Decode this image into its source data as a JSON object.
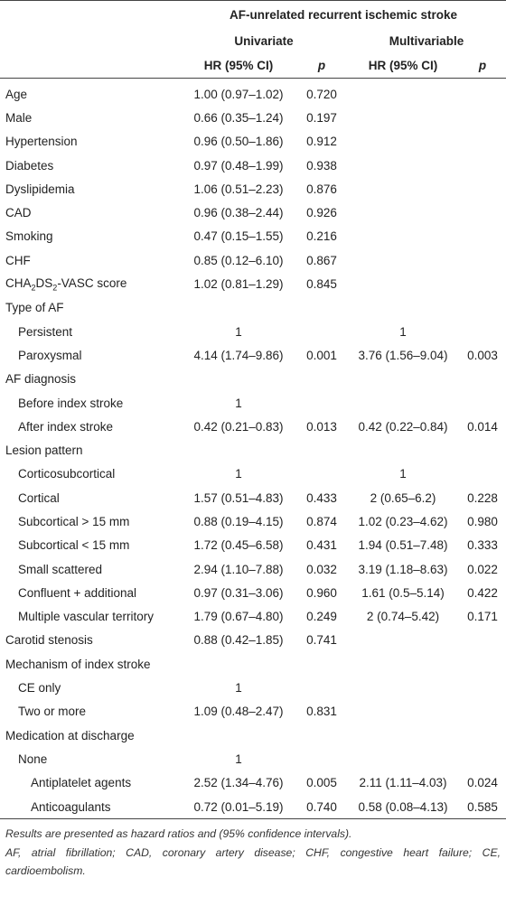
{
  "header": {
    "group_title": "AF-unrelated recurrent ischemic stroke",
    "univariate_label": "Univariate",
    "multivariable_label": "Multivariable",
    "hr_label": "HR (95% CI)",
    "p_label": "p"
  },
  "rows": [
    {
      "label": "Age",
      "indent": 0,
      "uni_hr": "1.00 (0.97–1.02)",
      "uni_p": "0.720",
      "multi_hr": "",
      "multi_p": ""
    },
    {
      "label": "Male",
      "indent": 0,
      "uni_hr": "0.66 (0.35–1.24)",
      "uni_p": "0.197",
      "multi_hr": "",
      "multi_p": ""
    },
    {
      "label": "Hypertension",
      "indent": 0,
      "uni_hr": "0.96 (0.50–1.86)",
      "uni_p": "0.912",
      "multi_hr": "",
      "multi_p": ""
    },
    {
      "label": "Diabetes",
      "indent": 0,
      "uni_hr": "0.97 (0.48–1.99)",
      "uni_p": "0.938",
      "multi_hr": "",
      "multi_p": ""
    },
    {
      "label": "Dyslipidemia",
      "indent": 0,
      "uni_hr": "1.06 (0.51–2.23)",
      "uni_p": "0.876",
      "multi_hr": "",
      "multi_p": ""
    },
    {
      "label": "CAD",
      "indent": 0,
      "uni_hr": "0.96 (0.38–2.44)",
      "uni_p": "0.926",
      "multi_hr": "",
      "multi_p": ""
    },
    {
      "label": "Smoking",
      "indent": 0,
      "uni_hr": "0.47 (0.15–1.55)",
      "uni_p": "0.216",
      "multi_hr": "",
      "multi_p": ""
    },
    {
      "label": "CHF",
      "indent": 0,
      "uni_hr": "0.85 (0.12–6.10)",
      "uni_p": "0.867",
      "multi_hr": "",
      "multi_p": ""
    },
    {
      "label": "CHA2DS2-VASC score",
      "indent": 0,
      "uni_hr": "1.02 (0.81–1.29)",
      "uni_p": "0.845",
      "multi_hr": "",
      "multi_p": ""
    },
    {
      "label": "Type of AF",
      "indent": 0,
      "uni_hr": "",
      "uni_p": "",
      "multi_hr": "",
      "multi_p": ""
    },
    {
      "label": "Persistent",
      "indent": 1,
      "uni_hr": "1",
      "uni_p": "",
      "multi_hr": "1",
      "multi_p": ""
    },
    {
      "label": "Paroxysmal",
      "indent": 1,
      "uni_hr": "4.14 (1.74–9.86)",
      "uni_p": "0.001",
      "multi_hr": "3.76 (1.56–9.04)",
      "multi_p": "0.003"
    },
    {
      "label": "AF diagnosis",
      "indent": 0,
      "uni_hr": "",
      "uni_p": "",
      "multi_hr": "",
      "multi_p": ""
    },
    {
      "label": "Before index stroke",
      "indent": 1,
      "uni_hr": "1",
      "uni_p": "",
      "multi_hr": "",
      "multi_p": ""
    },
    {
      "label": "After index stroke",
      "indent": 1,
      "uni_hr": "0.42 (0.21–0.83)",
      "uni_p": "0.013",
      "multi_hr": "0.42 (0.22–0.84)",
      "multi_p": "0.014"
    },
    {
      "label": "Lesion pattern",
      "indent": 0,
      "uni_hr": "",
      "uni_p": "",
      "multi_hr": "",
      "multi_p": ""
    },
    {
      "label": "Corticosubcortical",
      "indent": 1,
      "uni_hr": "1",
      "uni_p": "",
      "multi_hr": "1",
      "multi_p": ""
    },
    {
      "label": "Cortical",
      "indent": 1,
      "uni_hr": "1.57 (0.51–4.83)",
      "uni_p": "0.433",
      "multi_hr": "2 (0.65–6.2)",
      "multi_p": "0.228"
    },
    {
      "label": "Subcortical > 15 mm",
      "indent": 1,
      "uni_hr": "0.88 (0.19–4.15)",
      "uni_p": "0.874",
      "multi_hr": "1.02 (0.23–4.62)",
      "multi_p": "0.980"
    },
    {
      "label": "Subcortical < 15 mm",
      "indent": 1,
      "uni_hr": "1.72 (0.45–6.58)",
      "uni_p": "0.431",
      "multi_hr": "1.94 (0.51–7.48)",
      "multi_p": "0.333"
    },
    {
      "label": "Small scattered",
      "indent": 1,
      "uni_hr": "2.94 (1.10–7.88)",
      "uni_p": "0.032",
      "multi_hr": "3.19 (1.18–8.63)",
      "multi_p": "0.022"
    },
    {
      "label": "Confluent + additional",
      "indent": 1,
      "uni_hr": "0.97 (0.31–3.06)",
      "uni_p": "0.960",
      "multi_hr": "1.61 (0.5–5.14)",
      "multi_p": "0.422"
    },
    {
      "label": "Multiple vascular territory",
      "indent": 1,
      "uni_hr": "1.79 (0.67–4.80)",
      "uni_p": "0.249",
      "multi_hr": "2 (0.74–5.42)",
      "multi_p": "0.171"
    },
    {
      "label": "Carotid stenosis",
      "indent": 0,
      "uni_hr": "0.88 (0.42–1.85)",
      "uni_p": "0.741",
      "multi_hr": "",
      "multi_p": ""
    },
    {
      "label": "Mechanism of index stroke",
      "indent": 0,
      "uni_hr": "",
      "uni_p": "",
      "multi_hr": "",
      "multi_p": ""
    },
    {
      "label": "CE only",
      "indent": 1,
      "uni_hr": "1",
      "uni_p": "",
      "multi_hr": "",
      "multi_p": ""
    },
    {
      "label": "Two or more",
      "indent": 1,
      "uni_hr": "1.09 (0.48–2.47)",
      "uni_p": "0.831",
      "multi_hr": "",
      "multi_p": ""
    },
    {
      "label": "Medication at discharge",
      "indent": 0,
      "uni_hr": "",
      "uni_p": "",
      "multi_hr": "",
      "multi_p": ""
    },
    {
      "label": "None",
      "indent": 1,
      "uni_hr": "1",
      "uni_p": "",
      "multi_hr": "",
      "multi_p": ""
    },
    {
      "label": "Antiplatelet agents",
      "indent": 2,
      "uni_hr": "2.52 (1.34–4.76)",
      "uni_p": "0.005",
      "multi_hr": "2.11 (1.11–4.03)",
      "multi_p": "0.024"
    },
    {
      "label": "Anticoagulants",
      "indent": 2,
      "uni_hr": "0.72 (0.01–5.19)",
      "uni_p": "0.740",
      "multi_hr": "0.58 (0.08–4.13)",
      "multi_p": "0.585"
    }
  ],
  "footnotes": [
    "Results are presented as hazard ratios and (95% confidence intervals).",
    "AF, atrial fibrillation; CAD, coronary artery disease; CHF, congestive heart failure; CE, cardioembolism."
  ]
}
